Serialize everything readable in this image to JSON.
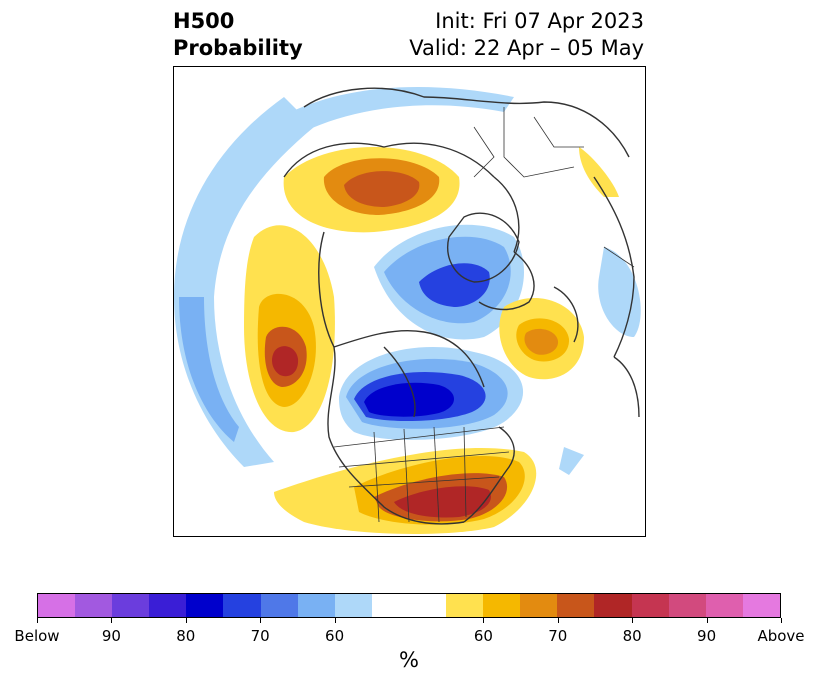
{
  "header": {
    "title_line1": "H500",
    "title_line2": "Probability",
    "init": "Init: Fri 07 Apr 2023",
    "valid": "Valid: 22 Apr – 05 May"
  },
  "map": {
    "projection": "north-polar-stereographic",
    "field": "500 hPa height probability",
    "borders_color": "#333333"
  },
  "colorbar": {
    "colors": [
      "#d670e6",
      "#a259e0",
      "#6b3ddd",
      "#3a1ed6",
      "#0000cc",
      "#2541e0",
      "#4f78e8",
      "#79b1f3",
      "#aed8f9",
      "#ffffff",
      "#ffffff",
      "#ffe14f",
      "#f5b800",
      "#e38b10",
      "#c8561b",
      "#b02626",
      "#c53551",
      "#d24a7e",
      "#df5fae",
      "#e579e0"
    ],
    "tick_labels": [
      "Below",
      "90",
      "80",
      "70",
      "60",
      "60",
      "70",
      "80",
      "90",
      "Above"
    ],
    "unit": "%"
  }
}
